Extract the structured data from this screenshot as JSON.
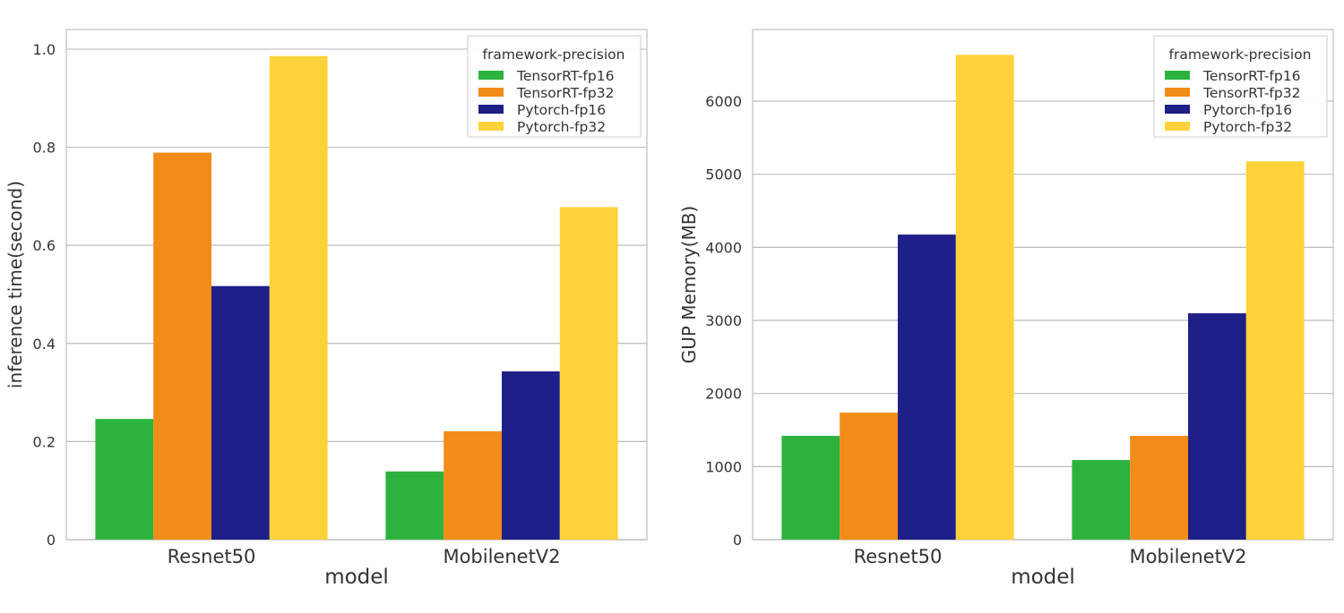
{
  "colors": {
    "TensorRT-fp16": "#2db33d",
    "TensorRT-fp32": "#f28c18",
    "Pytorch-fp16": "#1e1f87",
    "Pytorch-fp32": "#fed23a"
  },
  "chart_data": [
    {
      "type": "bar",
      "xlabel": "model",
      "ylabel": "inference time(second)",
      "categories": [
        "Resnet50",
        "MobilenetV2"
      ],
      "ylim": [
        0,
        1.04
      ],
      "yticks": [
        0,
        0.2,
        0.4,
        0.6,
        0.8,
        1.0
      ],
      "ytick_labels": [
        "0",
        "0.2",
        "0.4",
        "0.6",
        "0.8",
        "1.0"
      ],
      "grid": true,
      "legend": {
        "title": "framework-precision",
        "placement": "top-right"
      },
      "series": [
        {
          "name": "TensorRT-fp16",
          "values": [
            0.246,
            0.139
          ]
        },
        {
          "name": "TensorRT-fp32",
          "values": [
            0.789,
            0.221
          ]
        },
        {
          "name": "Pytorch-fp16",
          "values": [
            0.517,
            0.343
          ]
        },
        {
          "name": "Pytorch-fp32",
          "values": [
            0.986,
            0.678
          ]
        }
      ]
    },
    {
      "type": "bar",
      "xlabel": "model",
      "ylabel": "GUP Memory(MB)",
      "categories": [
        "Resnet50",
        "MobilenetV2"
      ],
      "ylim": [
        0,
        6980
      ],
      "yticks": [
        0,
        1000,
        2000,
        3000,
        4000,
        5000,
        6000
      ],
      "ytick_labels": [
        "0",
        "1000",
        "2000",
        "3000",
        "4000",
        "5000",
        "6000"
      ],
      "grid": true,
      "legend": {
        "title": "framework-precision",
        "placement": "top-right"
      },
      "series": [
        {
          "name": "TensorRT-fp16",
          "values": [
            1420,
            1089
          ]
        },
        {
          "name": "TensorRT-fp32",
          "values": [
            1738,
            1420
          ]
        },
        {
          "name": "Pytorch-fp16",
          "values": [
            4174,
            3097
          ]
        },
        {
          "name": "Pytorch-fp32",
          "values": [
            6634,
            5177
          ]
        }
      ]
    }
  ]
}
